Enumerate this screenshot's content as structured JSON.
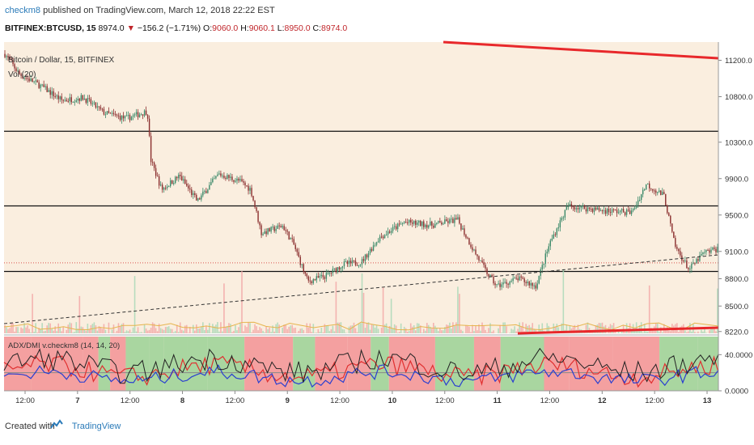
{
  "header": {
    "author": "checkm8",
    "published": "published on TradingView.com, March 12, 2018 22:22 EST",
    "symbol": "BITFINEX:BTCUSD, 15",
    "last": "8974.0",
    "change": "−156.2 (−1.71%)",
    "open_label": "O:",
    "open": "9060.0",
    "high_label": "H:",
    "high": "9060.1",
    "low_label": "L:",
    "low": "8950.0",
    "close_label": "C:",
    "close": "8974.0"
  },
  "legend": {
    "title": "Bitcoin / Dollar, 15, BITFINEX",
    "volume": "Vol (20)",
    "indicator": "ADX/DMI v.checkm8 (14, 14, 20)"
  },
  "footer": {
    "created_with": "Created with",
    "brand": "TradingView"
  },
  "colors": {
    "background": "#faeedf",
    "up_candle": "#3c8a6a",
    "down_candle": "#8b2f2f",
    "trendline": "#e8282b",
    "indicator_red": "#f4a0a0",
    "indicator_green": "#a9d6a0",
    "adx": "#222222",
    "di_plus": "#e03030",
    "di_minus": "#2a3fd0"
  },
  "chart_data": {
    "type": "candlestick",
    "title": "Bitcoin / Dollar, 15, BITFINEX",
    "x_ticks": [
      "12:00",
      "7",
      "12:00",
      "8",
      "12:00",
      "9",
      "12:00",
      "10",
      "12:00",
      "11",
      "12:00",
      "12",
      "12:00",
      "13"
    ],
    "y_ticks": [
      "11200.0",
      "10800.0",
      "10300.0",
      "9900.0",
      "9500.0",
      "9100.0",
      "8800.0",
      "8500.0",
      "8220.0"
    ],
    "ylim": [
      8200,
      11400
    ],
    "price_path": [
      {
        "x": 0,
        "y": 11270
      },
      {
        "x": 0.02,
        "y": 11050
      },
      {
        "x": 0.05,
        "y": 10920
      },
      {
        "x": 0.08,
        "y": 10760
      },
      {
        "x": 0.11,
        "y": 10790
      },
      {
        "x": 0.14,
        "y": 10620
      },
      {
        "x": 0.17,
        "y": 10560
      },
      {
        "x": 0.2,
        "y": 10640
      },
      {
        "x": 0.205,
        "y": 10100
      },
      {
        "x": 0.22,
        "y": 9780
      },
      {
        "x": 0.245,
        "y": 9930
      },
      {
        "x": 0.27,
        "y": 9650
      },
      {
        "x": 0.3,
        "y": 9950
      },
      {
        "x": 0.33,
        "y": 9870
      },
      {
        "x": 0.345,
        "y": 9780
      },
      {
        "x": 0.36,
        "y": 9300
      },
      {
        "x": 0.39,
        "y": 9380
      },
      {
        "x": 0.405,
        "y": 9180
      },
      {
        "x": 0.425,
        "y": 8770
      },
      {
        "x": 0.45,
        "y": 8830
      },
      {
        "x": 0.475,
        "y": 8960
      },
      {
        "x": 0.5,
        "y": 8980
      },
      {
        "x": 0.525,
        "y": 9250
      },
      {
        "x": 0.56,
        "y": 9420
      },
      {
        "x": 0.6,
        "y": 9390
      },
      {
        "x": 0.635,
        "y": 9450
      },
      {
        "x": 0.655,
        "y": 9150
      },
      {
        "x": 0.675,
        "y": 8880
      },
      {
        "x": 0.69,
        "y": 8720
      },
      {
        "x": 0.72,
        "y": 8800
      },
      {
        "x": 0.745,
        "y": 8720
      },
      {
        "x": 0.765,
        "y": 9200
      },
      {
        "x": 0.79,
        "y": 9600
      },
      {
        "x": 0.84,
        "y": 9550
      },
      {
        "x": 0.88,
        "y": 9530
      },
      {
        "x": 0.9,
        "y": 9840
      },
      {
        "x": 0.925,
        "y": 9710
      },
      {
        "x": 0.94,
        "y": 9160
      },
      {
        "x": 0.96,
        "y": 8900
      },
      {
        "x": 0.98,
        "y": 9080
      },
      {
        "x": 1.0,
        "y": 9130
      }
    ],
    "horizontal_levels": [
      10420,
      9600,
      8880
    ],
    "indicator": {
      "name": "ADX/DMI v.checkm8 (14, 14, 20)",
      "y_ticks": [
        "40.0000",
        "0.0000"
      ],
      "ylim": [
        0,
        60
      ],
      "threshold": 20
    }
  }
}
